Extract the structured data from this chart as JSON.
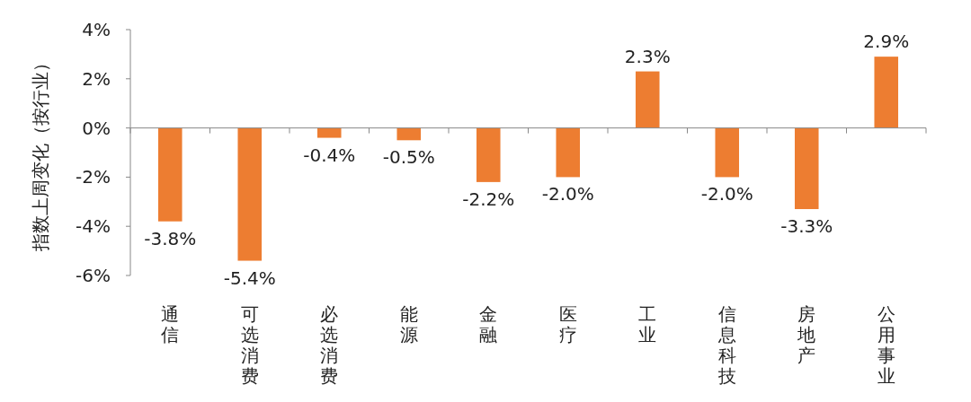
{
  "chart_data": {
    "type": "bar",
    "ylabel": "指数上周变化（按行业）",
    "categories": [
      "通信",
      "可选消费",
      "必选消费",
      "能源",
      "金融",
      "医疗",
      "工业",
      "信息科技",
      "房地产",
      "公用事业"
    ],
    "values": [
      -3.8,
      -5.4,
      -0.4,
      -0.5,
      -2.2,
      -2.0,
      2.3,
      -2.0,
      -3.3,
      2.9
    ],
    "value_labels": [
      "-3.8%",
      "-5.4%",
      "-0.4%",
      "-0.5%",
      "-2.2%",
      "-2.0%",
      "2.3%",
      "-2.0%",
      "-3.3%",
      "2.9%"
    ],
    "color": "#ed7d31",
    "ylim": [
      -6,
      4
    ],
    "yticks": [
      {
        "value": -6,
        "label": "-6%"
      },
      {
        "value": -4,
        "label": "-4%"
      },
      {
        "value": -2,
        "label": "-2%"
      },
      {
        "value": 0,
        "label": "0%"
      },
      {
        "value": 2,
        "label": "2%"
      },
      {
        "value": 4,
        "label": "4%"
      }
    ]
  }
}
